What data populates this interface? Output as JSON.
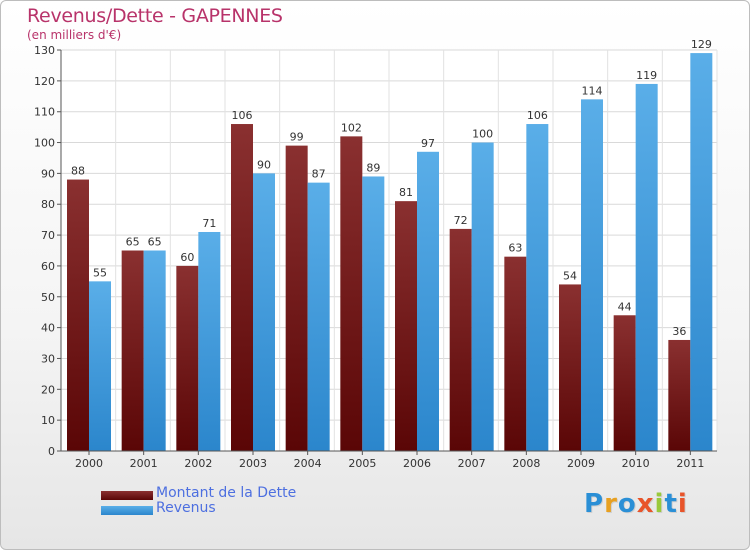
{
  "header": {
    "title": "Revenus/Dette - GAPENNES",
    "subtitle": "(en milliers d'€)"
  },
  "legend": {
    "items": [
      {
        "label": "Montant de la Dette",
        "color": "#6b0d0d"
      },
      {
        "label": "Revenus",
        "color": "#3a99e6"
      }
    ]
  },
  "logo": {
    "text": "Proxiti",
    "letters": [
      "P",
      "r",
      "o",
      "x",
      "i",
      "t",
      "i"
    ],
    "colors": [
      "#2a8fd6",
      "#e8a020",
      "#2a8fd6",
      "#e8542a",
      "#9ac93c",
      "#2a8fd6",
      "#e8542a"
    ]
  },
  "chart_data": {
    "type": "bar",
    "title": "Revenus/Dette - GAPENNES",
    "subtitle": "(en milliers d'€)",
    "xlabel": "",
    "ylabel": "",
    "ylim": [
      0,
      130
    ],
    "yticks": [
      0,
      10,
      20,
      30,
      40,
      50,
      60,
      70,
      80,
      90,
      100,
      110,
      120,
      130
    ],
    "grid": true,
    "legend_position": "bottom-left",
    "categories": [
      "2000",
      "2001",
      "2002",
      "2003",
      "2004",
      "2005",
      "2006",
      "2007",
      "2008",
      "2009",
      "2010",
      "2011"
    ],
    "series": [
      {
        "name": "Montant de la Dette",
        "color_top": "#8a3030",
        "color_bottom": "#5a0606",
        "values": [
          88,
          65,
          60,
          106,
          99,
          102,
          81,
          72,
          63,
          54,
          44,
          36
        ]
      },
      {
        "name": "Revenus",
        "color_top": "#5aaee8",
        "color_bottom": "#2b86cc",
        "values": [
          55,
          65,
          71,
          90,
          87,
          89,
          97,
          100,
          106,
          114,
          119,
          129
        ]
      }
    ]
  }
}
